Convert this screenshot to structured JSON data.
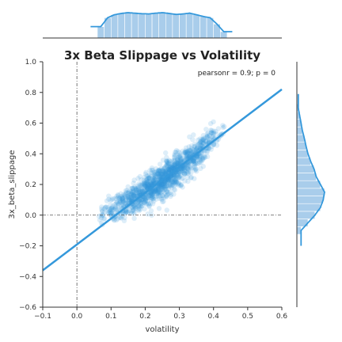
{
  "chart_data": {
    "type": "scatter",
    "title": "3x Beta Slippage vs Volatility",
    "xlabel": "volatility",
    "ylabel": "3x_beta_slippage",
    "annotation": "pearsonr = 0.9; p = 0",
    "xlim": [
      -0.1,
      0.6
    ],
    "ylim": [
      -0.6,
      1.0
    ],
    "xticks": [
      -0.1,
      0.0,
      0.1,
      0.2,
      0.3,
      0.4,
      0.5,
      0.6
    ],
    "yticks": [
      -0.6,
      -0.4,
      -0.2,
      0.0,
      0.2,
      0.4,
      0.6,
      0.8,
      1.0
    ],
    "xtick_labels": [
      "−0.1",
      "0.0",
      "0.1",
      "0.2",
      "0.3",
      "0.4",
      "0.5",
      "0.6"
    ],
    "ytick_labels": [
      "−0.6",
      "−0.4",
      "−0.2",
      "0.0",
      "0.2",
      "0.4",
      "0.6",
      "0.8",
      "1.0"
    ],
    "regression_line": {
      "x": [
        -0.1,
        0.6
      ],
      "y": [
        -0.36,
        0.82
      ]
    },
    "reference_lines": {
      "x": 0.0,
      "y": 0.0
    },
    "scatter_trend": {
      "x": [
        0.06,
        0.1,
        0.15,
        0.2,
        0.25,
        0.3,
        0.35,
        0.4,
        0.44
      ],
      "y_center": [
        0.0,
        0.03,
        0.09,
        0.15,
        0.22,
        0.3,
        0.4,
        0.5,
        0.58
      ],
      "y_spread": [
        0.05,
        0.07,
        0.08,
        0.08,
        0.08,
        0.08,
        0.08,
        0.07,
        0.05
      ]
    },
    "x_marginal": {
      "centers": [
        0.07,
        0.09,
        0.11,
        0.13,
        0.15,
        0.17,
        0.19,
        0.21,
        0.23,
        0.25,
        0.27,
        0.29,
        0.31,
        0.33,
        0.35,
        0.37,
        0.39,
        0.41,
        0.43
      ],
      "density": [
        0.45,
        0.8,
        0.92,
        0.97,
        1.0,
        0.98,
        0.96,
        0.95,
        0.98,
        1.0,
        0.97,
        0.93,
        0.95,
        0.98,
        0.92,
        0.85,
        0.8,
        0.55,
        0.25
      ]
    },
    "y_marginal": {
      "centers": [
        -0.1,
        -0.05,
        0.0,
        0.05,
        0.1,
        0.15,
        0.2,
        0.25,
        0.3,
        0.35,
        0.4,
        0.45,
        0.5,
        0.55,
        0.6,
        0.65,
        0.7
      ],
      "density": [
        0.15,
        0.4,
        0.65,
        0.85,
        0.95,
        1.0,
        0.85,
        0.7,
        0.62,
        0.5,
        0.4,
        0.33,
        0.27,
        0.2,
        0.15,
        0.1,
        0.05
      ]
    },
    "colors": {
      "points": "#3498db",
      "line": "#3498db",
      "hist": "#a9cdeb",
      "kde": "#3498db",
      "reference": "#555555",
      "axis": "#333333"
    }
  }
}
